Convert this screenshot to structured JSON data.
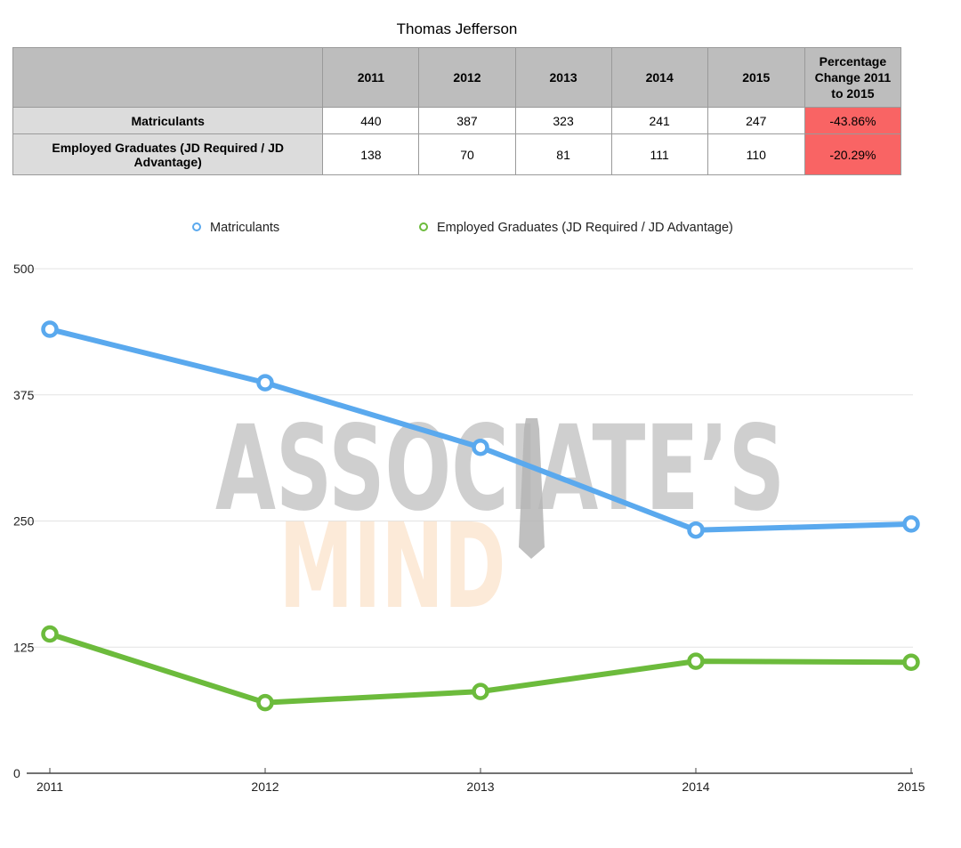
{
  "title": "Thomas Jefferson",
  "table": {
    "headers": [
      "",
      "2011",
      "2012",
      "2013",
      "2014",
      "2015",
      "Percentage Change 2011 to 2015"
    ],
    "rows": [
      {
        "label": "Matriculants",
        "cells": [
          "440",
          "387",
          "323",
          "241",
          "247"
        ],
        "pct": "-43.86%"
      },
      {
        "label": "Employed Graduates (JD Required / JD Advantage)",
        "cells": [
          "138",
          "70",
          "81",
          "111",
          "110"
        ],
        "pct": "-20.29%"
      }
    ]
  },
  "watermark": {
    "line1": "ASSOCIATE’S",
    "line2": "MIND"
  },
  "colors": {
    "matriculants": "#5aa9ee",
    "employed": "#6cbb3c",
    "pct_bad": "#f96464",
    "header_bg": "#bdbdbd",
    "row_header_bg": "#dcdcdc"
  },
  "chart_data": {
    "type": "line",
    "categories": [
      "2011",
      "2012",
      "2013",
      "2014",
      "2015"
    ],
    "series": [
      {
        "name": "Matriculants",
        "values": [
          440,
          387,
          323,
          241,
          247
        ],
        "color": "#5aa9ee"
      },
      {
        "name": "Employed Graduates (JD Required / JD Advantage)",
        "values": [
          138,
          70,
          81,
          111,
          110
        ],
        "color": "#6cbb3c"
      }
    ],
    "y_ticks": [
      "0",
      "125",
      "250",
      "375",
      "500"
    ],
    "ylim": [
      0,
      500
    ],
    "grid": true,
    "legend_position": "top-center"
  }
}
